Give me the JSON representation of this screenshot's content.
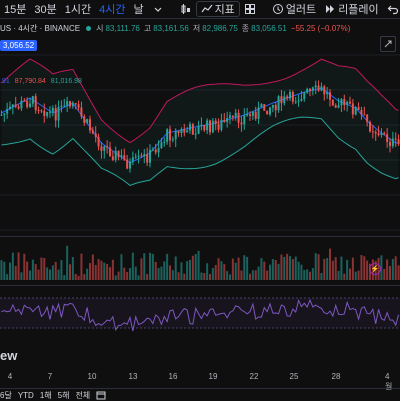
{
  "toolbar": {
    "timeframes": [
      "15분",
      "30분",
      "1시간",
      "4시간",
      "날"
    ],
    "active_timeframe": "4시간",
    "indicators_label": "지표",
    "alert_label": "얼러트",
    "replay_label": "리플레이"
  },
  "legend": {
    "symbol": "US · 4시간 · BINANCE",
    "open_label": "시",
    "open": "83,111.76",
    "high_label": "고",
    "high": "83,161.56",
    "low_label": "저",
    "low": "82,986.75",
    "close_label": "종",
    "close": "83,056.51",
    "change": "−55.25 (−0.07%)"
  },
  "price_badge": "3,056.52",
  "bb_readout": {
    "v1": ".91",
    "v2": "87,790.84",
    "v3": "81,016.98"
  },
  "time_axis": [
    "4",
    "7",
    "10",
    "13",
    "16",
    "19",
    "22",
    "25",
    "28",
    "4월"
  ],
  "bottom_bar": {
    "items": [
      "6달",
      "YTD",
      "1해",
      "5해",
      "전체"
    ]
  },
  "watermark": "ew",
  "colors": {
    "up": "#26a69a",
    "down": "#ef5350",
    "bb_upper": "#c2185b",
    "bb_middle": "#2962ff",
    "bb_lower": "#26a69a",
    "rsi": "#7e57c2",
    "accent": "#2962ff"
  },
  "icons": [
    "candles-icon",
    "indicators-icon",
    "alert-icon",
    "replay-icon",
    "settings-icon"
  ]
}
